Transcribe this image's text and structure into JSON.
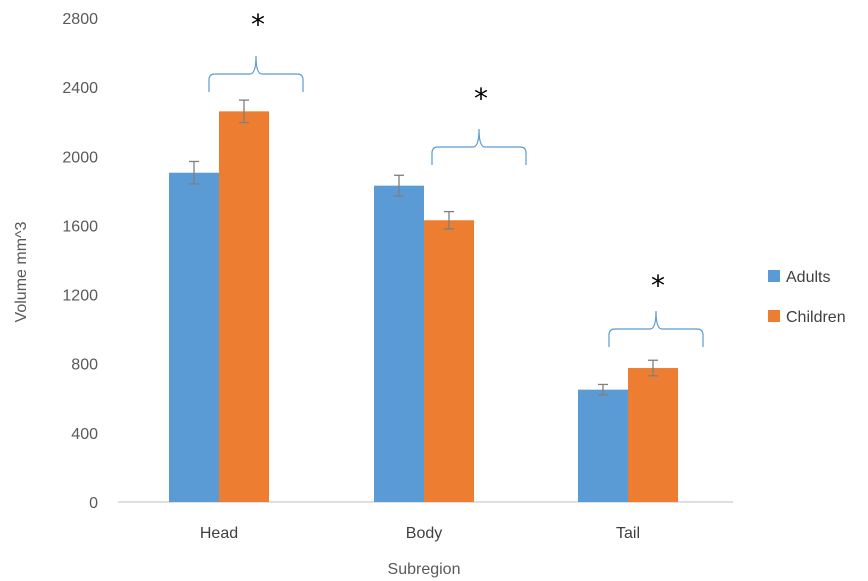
{
  "chart_data": {
    "type": "bar",
    "title": "",
    "xlabel": "Subregion",
    "ylabel": "Volume mm^3",
    "categories": [
      "Head",
      "Body",
      "Tail"
    ],
    "ylim": [
      0,
      2800
    ],
    "yticks": [
      0,
      400,
      800,
      1200,
      1600,
      2000,
      2400,
      2800
    ],
    "grid": false,
    "legend_position": "right",
    "series": [
      {
        "name": "Adults",
        "color": "#5b9bd5",
        "values": [
          1905,
          1830,
          650
        ],
        "errors": [
          65,
          60,
          30
        ]
      },
      {
        "name": "Children",
        "color": "#ed7d31",
        "values": [
          2260,
          1630,
          775
        ],
        "errors": [
          65,
          50,
          45
        ]
      }
    ],
    "significance": [
      {
        "category": "Head",
        "label": "*"
      },
      {
        "category": "Body",
        "label": "*"
      },
      {
        "category": "Tail",
        "label": "*"
      }
    ],
    "colors": {
      "axis": "#bfbfbf",
      "bracket": "#5b9bd5",
      "error_bar": "#7f7f7f"
    }
  }
}
